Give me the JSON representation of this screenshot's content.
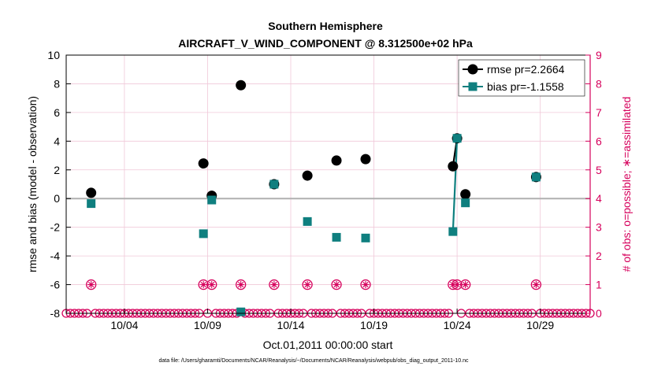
{
  "chart_data": {
    "type": "line",
    "title": "Southern Hemisphere",
    "subtitle": "AIRCRAFT_V_WIND_COMPONENT @ 8.312500e+02 hPa",
    "xlabel": "Oct.01,2011 00:00:00 start",
    "ylabel": "rmse and bias (model - observation)",
    "y2label": "# of obs: o=possible; ∗=assimilated",
    "footer": "data file: /Users/gharamti/Documents/NCAR/Reanalysis/~/Documents/NCAR/Reanalysis/webpub/obs_diag_output_2011-10.nc",
    "xlim": [
      0.5,
      32
    ],
    "ylim": [
      -8,
      10
    ],
    "y2lim": [
      0,
      9
    ],
    "x_ticks": [
      {
        "x": 4,
        "label": "10/04"
      },
      {
        "x": 9,
        "label": "10/09"
      },
      {
        "x": 14,
        "label": "10/14"
      },
      {
        "x": 19,
        "label": "10/19"
      },
      {
        "x": 24,
        "label": "10/24"
      },
      {
        "x": 29,
        "label": "10/29"
      }
    ],
    "y_ticks": [
      -8,
      -6,
      -4,
      -2,
      0,
      2,
      4,
      6,
      8,
      10
    ],
    "y2_ticks": [
      0,
      1,
      2,
      3,
      4,
      5,
      6,
      7,
      8,
      9
    ],
    "grid": true,
    "legend_position": "top-right",
    "colors": {
      "rmse": "#000000",
      "bias": "#0f7f7f",
      "obs": "#d6005c",
      "zero_line": "#b0b0b0",
      "grid": "#f0c8d8"
    },
    "series": [
      {
        "name": "rmse",
        "legend": "rmse pr=2.2664",
        "points": [
          [
            2,
            0.4
          ],
          [
            8.75,
            2.45
          ],
          [
            9.25,
            0.2
          ],
          [
            11,
            7.9
          ],
          [
            13,
            1.0
          ],
          [
            15,
            1.6
          ],
          [
            16.75,
            2.65
          ],
          [
            18.5,
            2.75
          ],
          [
            23.75,
            2.25
          ],
          [
            24,
            4.2
          ],
          [
            24.5,
            0.3
          ],
          [
            28.75,
            1.5
          ]
        ]
      },
      {
        "name": "bias",
        "legend": "bias pr=-1.1558",
        "points": [
          [
            2,
            -0.35
          ],
          [
            8.75,
            -2.45
          ],
          [
            9.25,
            -0.1
          ],
          [
            11,
            -7.9
          ],
          [
            13,
            1.0
          ],
          [
            15,
            -1.6
          ],
          [
            16.75,
            -2.7
          ],
          [
            18.5,
            -2.75
          ],
          [
            23.75,
            -2.3
          ],
          [
            24,
            4.2
          ],
          [
            24.5,
            -0.3
          ],
          [
            28.75,
            1.5
          ]
        ]
      }
    ],
    "line_segments": [
      {
        "series": "rmse",
        "points": [
          [
            23.75,
            2.25
          ],
          [
            24,
            4.2
          ]
        ]
      },
      {
        "series": "bias",
        "points": [
          [
            23.75,
            -2.3
          ],
          [
            24,
            4.2
          ]
        ]
      }
    ],
    "obs_possible": [
      {
        "x": 2,
        "count": 1
      },
      {
        "x": 8.75,
        "count": 1
      },
      {
        "x": 9.25,
        "count": 1
      },
      {
        "x": 11,
        "count": 1
      },
      {
        "x": 13,
        "count": 1
      },
      {
        "x": 15,
        "count": 1
      },
      {
        "x": 16.75,
        "count": 1
      },
      {
        "x": 18.5,
        "count": 1
      },
      {
        "x": 23.75,
        "count": 1
      },
      {
        "x": 24,
        "count": 1
      },
      {
        "x": 24.5,
        "count": 1
      },
      {
        "x": 28.75,
        "count": 1
      }
    ],
    "obs_assimilated": [
      {
        "x": 2,
        "count": 1
      },
      {
        "x": 8.75,
        "count": 1
      },
      {
        "x": 9.25,
        "count": 1
      },
      {
        "x": 11,
        "count": 1
      },
      {
        "x": 13,
        "count": 1
      },
      {
        "x": 15,
        "count": 1
      },
      {
        "x": 16.75,
        "count": 1
      },
      {
        "x": 18.5,
        "count": 1
      },
      {
        "x": 23.75,
        "count": 1
      },
      {
        "x": 24,
        "count": 1
      },
      {
        "x": 24.5,
        "count": 1
      },
      {
        "x": 28.75,
        "count": 1
      }
    ],
    "zero_obs_x_start": 0.5,
    "zero_obs_x_end": 32,
    "zero_obs_x_step": 0.25
  }
}
